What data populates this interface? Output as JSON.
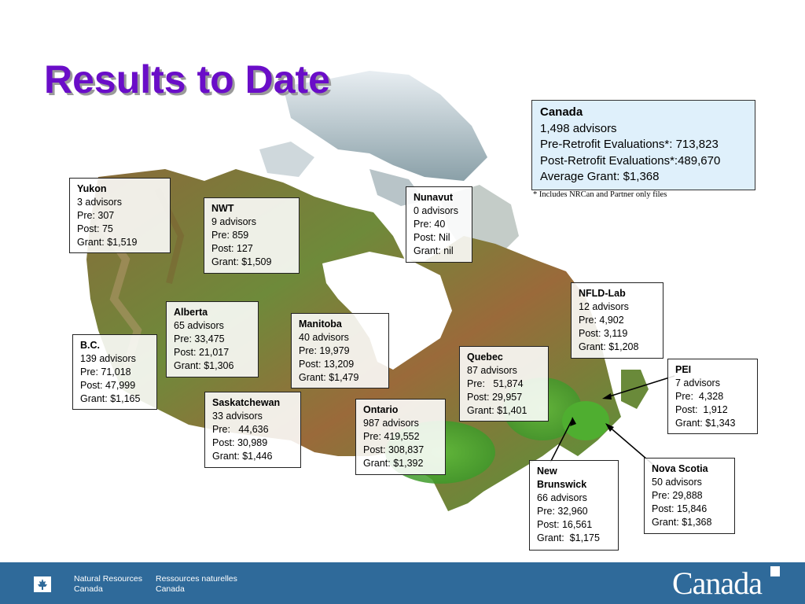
{
  "slide": {
    "title": "Results to Date"
  },
  "canada": {
    "name": "Canada",
    "lines": [
      "1,498 advisors",
      "Pre-Retrofit Evaluations*: 713,823",
      "Post-Retrofit Evaluations*:489,670",
      "Average Grant: $1,368"
    ],
    "footnote": "* Includes NRCan and Partner only files"
  },
  "regions": {
    "yukon": {
      "name": "Yukon",
      "lines": [
        "3 advisors",
        "Pre: 307",
        "Post: 75",
        "Grant: $1,519"
      ]
    },
    "nwt": {
      "name": "NWT",
      "lines": [
        "9 advisors",
        "Pre: 859",
        "Post: 127",
        "Grant: $1,509"
      ]
    },
    "nunavut": {
      "name": "Nunavut",
      "lines": [
        "0 advisors",
        "Pre: 40",
        "Post: Nil",
        "Grant: nil"
      ]
    },
    "nfld": {
      "name": "NFLD-Lab",
      "lines": [
        "12 advisors",
        "Pre: 4,902",
        "Post: 3,119",
        "Grant: $1,208"
      ]
    },
    "alberta": {
      "name": "Alberta",
      "lines": [
        "65 advisors",
        "Pre: 33,475",
        "Post: 21,017",
        "Grant: $1,306"
      ]
    },
    "bc": {
      "name": "B.C.",
      "lines": [
        "139 advisors",
        "Pre: 71,018",
        "Post: 47,999",
        "Grant: $1,165"
      ]
    },
    "manitoba": {
      "name": "Manitoba",
      "lines": [
        "40 advisors",
        "Pre: 19,979",
        "Post: 13,209",
        "Grant: $1,479"
      ]
    },
    "quebec": {
      "name": "Quebec",
      "lines": [
        "87 advisors",
        "Pre:   51,874",
        "Post: 29,957",
        "Grant: $1,401"
      ]
    },
    "pei": {
      "name": "PEI",
      "lines": [
        "7 advisors",
        "Pre:  4,328",
        "Post:  1,912",
        "Grant: $1,343"
      ]
    },
    "saskatchewan": {
      "name": "Saskatchewan",
      "lines": [
        "33 advisors",
        "Pre:   44,636",
        "Post: 30,989",
        "Grant: $1,446"
      ]
    },
    "ontario": {
      "name": "Ontario",
      "lines": [
        "987 advisors",
        "Pre: 419,552",
        "Post: 308,837",
        "Grant: $1,392"
      ]
    },
    "nb": {
      "name_line1": "New",
      "name_line2": "Brunswick",
      "lines": [
        "66 advisors",
        "Pre: 32,960",
        "Post: 16,561",
        "Grant:  $1,175"
      ]
    },
    "ns": {
      "name": "Nova Scotia",
      "lines": [
        "50 advisors",
        "Pre: 29,888",
        "Post: 15,846",
        "Grant: $1,368"
      ]
    }
  },
  "footer": {
    "en_line1": "Natural Resources",
    "en_line2": "Canada",
    "fr_line1": "Ressources naturelles",
    "fr_line2": "Canada",
    "wordmark": "Canada",
    "colors": {
      "band": "#2f6a9a",
      "title": "#6a0dc8"
    }
  },
  "icons": [
    "canada-map",
    "canada-flag-icon",
    "arrow-icon"
  ]
}
